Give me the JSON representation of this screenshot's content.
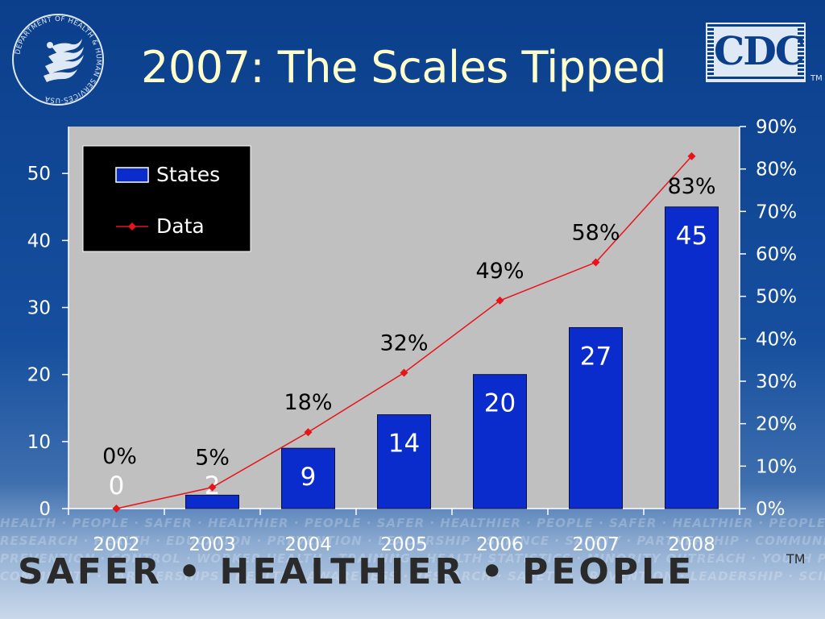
{
  "slide": {
    "title": "2007: The Scales Tipped",
    "slogan": "SAFER • HEALTHIER • PEOPLE",
    "slogan_tm": "TM",
    "hhs_seal_text": "DEPARTMENT OF HEALTH & HUMAN SERVICES·USA",
    "cdc_logo_text": "CDC",
    "cdc_tm": "TM",
    "background_words": [
      "HEALTH · PEOPLE · SAFER · HEALTHIER · PEOPLE · SAFER · HEALTHIER · PEOPLE · SAFER · HEALTHIER · PEOPLE · SAFER",
      "RESEARCH · HEALTH · EDUCATION · PREVENTION · LEADERSHIP · SCIENCE · SAFETY · PARTNERSHIP · COMMUNITY · HEALTH",
      "PREVENTION · CONTROL · WORKER HEALTH · TRAINING · HEALTH STATISTICS · MINORITY OUTREACH · YOUTH PROGRAMS",
      "COMMUNITY · PARTNERSHIPS · HEALTH · AWARENESS · RESEARCH · SAFETY · PREVENTION · LEADERSHIP · SCIENCE"
    ],
    "colors": {
      "background": "#0b3f8c",
      "title": "#ffffcc",
      "plot_area": "#c0c0c0",
      "bar": "#0a2ccc",
      "line": "#e8141a",
      "legend_bg": "#000000"
    }
  },
  "chart_data": {
    "type": "bar",
    "categories": [
      "2002",
      "2003",
      "2004",
      "2005",
      "2006",
      "2007",
      "2008"
    ],
    "series": [
      {
        "name": "States",
        "type": "bar",
        "axis": "left",
        "values": [
          0,
          2,
          9,
          14,
          20,
          27,
          45
        ],
        "data_labels": [
          "0",
          "2",
          "9",
          "14",
          "20",
          "27",
          "45"
        ]
      },
      {
        "name": "Data",
        "type": "line",
        "axis": "right",
        "values": [
          0,
          5,
          18,
          32,
          49,
          58,
          83
        ],
        "data_labels": [
          "0%",
          "5%",
          "18%",
          "32%",
          "49%",
          "58%",
          "83%"
        ]
      }
    ],
    "ylim": [
      0,
      57
    ],
    "yticks": [
      0,
      10,
      20,
      30,
      40,
      50
    ],
    "y2lim": [
      0,
      90
    ],
    "y2ticks": [
      "0%",
      "10%",
      "20%",
      "30%",
      "40%",
      "50%",
      "60%",
      "70%",
      "80%",
      "90%"
    ],
    "legend": {
      "position": "top-left",
      "entries": [
        "States",
        "Data"
      ]
    },
    "grid": false
  }
}
